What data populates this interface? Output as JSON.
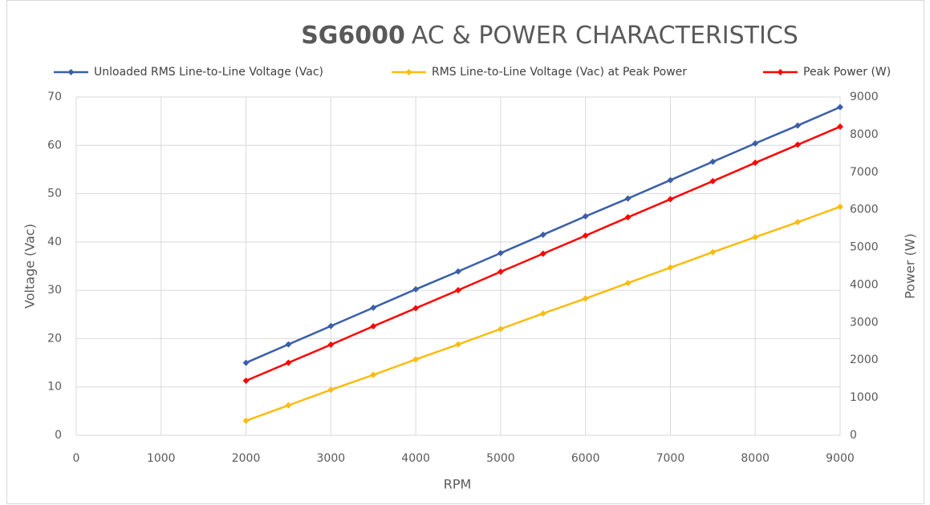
{
  "chart_data": {
    "type": "line",
    "title_model": "SG6000",
    "title": "AC & POWER CHARACTERISTICS",
    "x_label": "RPM",
    "y_label": "Voltage (Vac)",
    "y2_label": "Power (W)",
    "x": [
      2000,
      2500,
      3000,
      3500,
      4000,
      4500,
      5000,
      5500,
      6000,
      6500,
      7000,
      7500,
      8000,
      8500,
      9000
    ],
    "series": [
      {
        "name": "Unloaded RMS Line-to-Line Voltage (Vac)",
        "color": "#3a5ea8",
        "axis": "y",
        "values": [
          15.0,
          18.8,
          22.6,
          26.4,
          30.2,
          33.9,
          37.7,
          41.5,
          45.3,
          49.0,
          52.8,
          56.6,
          60.4,
          64.1,
          67.9
        ]
      },
      {
        "name": "RMS Line-to-Line Voltage (Vac) at Peak Power",
        "color": "#fbbc0e",
        "axis": "y",
        "values": [
          3.0,
          6.2,
          9.4,
          12.5,
          15.7,
          18.8,
          22.0,
          25.2,
          28.3,
          31.5,
          34.7,
          37.9,
          41.0,
          44.1,
          47.3
        ]
      },
      {
        "name": "Peak Power (W)",
        "color": "#ff0000",
        "axis": "y2",
        "values": [
          1450,
          1930,
          2410,
          2900,
          3380,
          3860,
          4350,
          4830,
          5310,
          5800,
          6280,
          6760,
          7250,
          7730,
          8210
        ]
      }
    ],
    "xlim": [
      0,
      9000
    ],
    "xticks": [
      0,
      1000,
      2000,
      3000,
      4000,
      5000,
      6000,
      7000,
      8000,
      9000
    ],
    "ylim": [
      0,
      70
    ],
    "yticks": [
      0,
      10,
      20,
      30,
      40,
      50,
      60,
      70
    ],
    "y2lim": [
      0,
      9000
    ],
    "y2ticks": [
      0,
      1000,
      2000,
      3000,
      4000,
      5000,
      6000,
      7000,
      8000,
      9000
    ],
    "grid": true,
    "legend": "top"
  }
}
